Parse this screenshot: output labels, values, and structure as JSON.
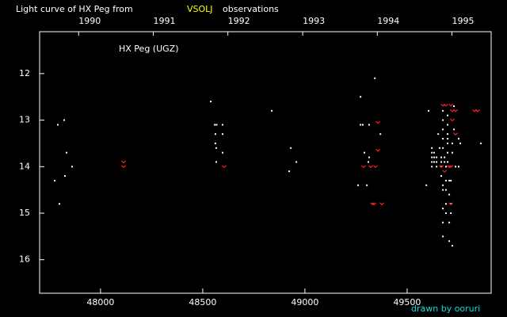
{
  "chart_data": {
    "type": "scatter",
    "title": [
      "Light curve of HX Peg from",
      "VSOLJ",
      "observations"
    ],
    "annotation": "HX Peg (UGZ)",
    "credit": "drawn by ooruri",
    "xlim": [
      47702,
      49911
    ],
    "xticks": [
      48000,
      48500,
      49000,
      49500
    ],
    "x2ticks": [
      {
        "value": 47893,
        "label": "1990"
      },
      {
        "value": 48258,
        "label": "1991"
      },
      {
        "value": 48623,
        "label": "1992"
      },
      {
        "value": 48989,
        "label": "1993"
      },
      {
        "value": 49354,
        "label": "1994"
      },
      {
        "value": 49719,
        "label": "1995"
      }
    ],
    "ylim": [
      16.72,
      11.1
    ],
    "yticks": [
      12,
      13,
      14,
      15,
      16
    ],
    "series": [
      {
        "color": "#ffffff",
        "x": [
          47791,
          47822,
          47834,
          47861,
          47826,
          47776,
          47799,
          48539,
          48559,
          48568,
          48597,
          48562,
          48597,
          48562,
          48566,
          48597,
          48566,
          48838,
          48931,
          48958,
          48923,
          49272,
          49342,
          49272,
          49283,
          49314,
          49369,
          49291,
          49314,
          49310,
          49260,
          49303,
          49605,
          49594,
          49621,
          49621,
          49621,
          49621,
          49621,
          49632,
          49632,
          49632,
          49644,
          49644,
          49644,
          49652,
          49659,
          49667,
          49667,
          49667,
          49667,
          49675,
          49675,
          49675,
          49675,
          49675,
          49675,
          49675,
          49675,
          49675,
          49675,
          49683,
          49683,
          49690,
          49690,
          49690,
          49690,
          49690,
          49698,
          49698,
          49698,
          49698,
          49698,
          49698,
          49698,
          49706,
          49706,
          49706,
          49706,
          49714,
          49714,
          49714,
          49721,
          49721,
          49721,
          49729,
          49729,
          49737,
          49752,
          49760,
          49752,
          49861
        ],
        "values": [
          13.1,
          13.0,
          13.7,
          14.0,
          14.2,
          14.3,
          14.8,
          12.6,
          13.1,
          13.1,
          13.1,
          13.3,
          13.3,
          13.5,
          13.6,
          13.7,
          13.9,
          12.8,
          13.6,
          13.9,
          14.1,
          12.5,
          12.1,
          13.1,
          13.1,
          13.1,
          13.3,
          13.7,
          13.8,
          13.9,
          14.4,
          14.4,
          12.8,
          14.4,
          13.6,
          13.7,
          13.8,
          13.9,
          14.0,
          13.7,
          13.8,
          13.9,
          13.8,
          13.9,
          14.0,
          13.3,
          13.6,
          13.8,
          13.9,
          14.0,
          14.2,
          12.8,
          13.0,
          13.2,
          13.4,
          13.6,
          14.4,
          14.5,
          14.9,
          15.2,
          15.5,
          13.8,
          13.9,
          14.0,
          14.3,
          14.5,
          14.8,
          15.0,
          12.9,
          13.1,
          13.3,
          13.4,
          13.5,
          13.7,
          13.9,
          14.3,
          14.6,
          15.2,
          15.6,
          14.8,
          15.0,
          14.3,
          13.5,
          13.7,
          15.7,
          12.7,
          13.2,
          14.0,
          13.4,
          13.5,
          14.0,
          13.5
        ]
      },
      {
        "color": "#ff2020",
        "x": [
          48113,
          48113,
          48605,
          49357,
          49357,
          49287,
          49322,
          49345,
          49330,
          49338,
          49376,
          49675,
          49690,
          49714,
          49721,
          49737,
          49737,
          49721,
          49667,
          49706,
          49714,
          49683,
          49714,
          49830,
          49845
        ],
        "values": [
          13.9,
          14.0,
          14.0,
          13.05,
          13.65,
          14.0,
          14.0,
          14.0,
          14.8,
          14.8,
          14.8,
          12.68,
          12.68,
          12.68,
          13.0,
          13.3,
          12.8,
          12.8,
          14.0,
          14.0,
          14.0,
          14.1,
          14.8,
          12.8,
          12.8
        ]
      }
    ]
  }
}
